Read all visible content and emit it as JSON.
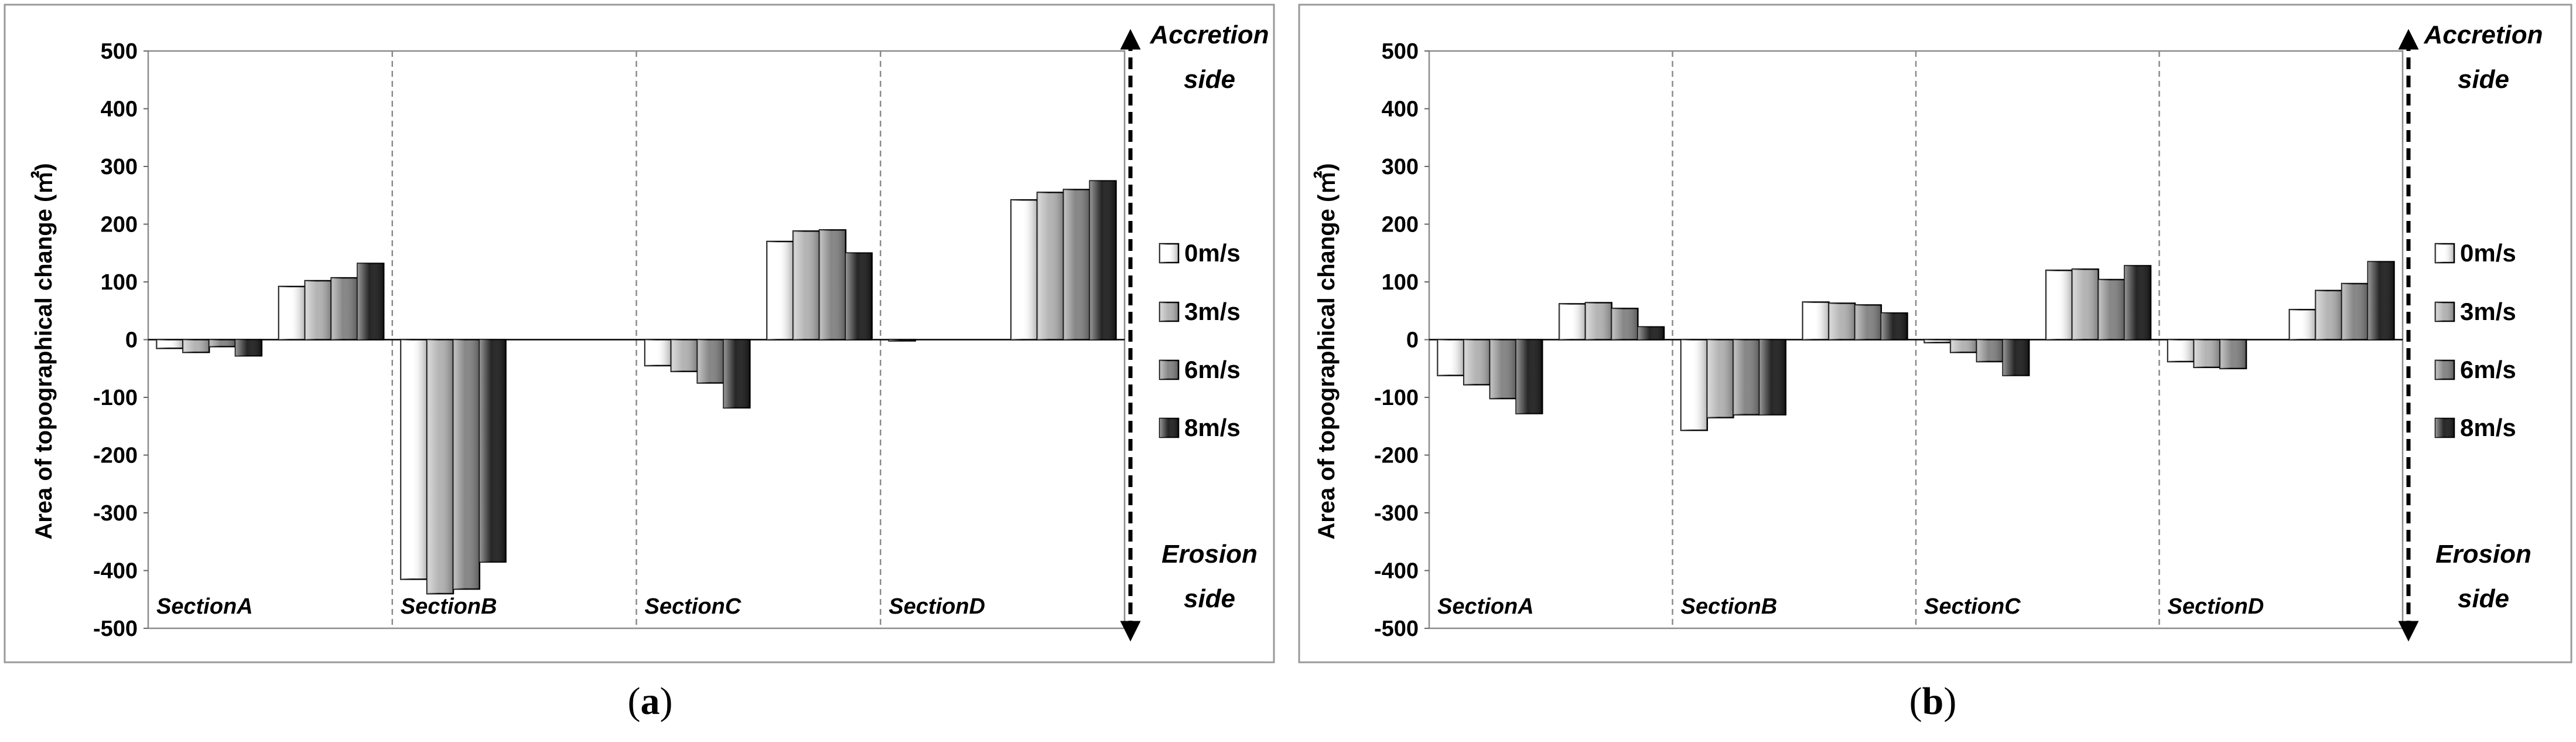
{
  "chart_data": [
    {
      "type": "bar",
      "caption_letter": "a",
      "ylabel": "Area of topographical change (㎡)",
      "ylim": [
        -500,
        500
      ],
      "yticks": [
        "500",
        "400",
        "300",
        "200",
        "100",
        "0",
        "-100",
        "-200",
        "-300",
        "-400",
        "-500"
      ],
      "sections": [
        "SectionA",
        "SectionB",
        "SectionC",
        "SectionD"
      ],
      "groups_per_section": 2,
      "legend": [
        "0m/s",
        "3m/s",
        "6m/s",
        "8m/s"
      ],
      "accretion_label": [
        "Accretion",
        "side"
      ],
      "erosion_label": [
        "Erosion",
        "side"
      ],
      "series": [
        {
          "name": "0m/s",
          "color": "#ffffff",
          "values": [
            -15,
            92,
            -415,
            0,
            -45,
            170,
            -2,
            242
          ]
        },
        {
          "name": "3m/s",
          "color": "#b0b0b0",
          "values": [
            -22,
            102,
            -440,
            0,
            -55,
            188,
            0,
            255
          ]
        },
        {
          "name": "6m/s",
          "color": "#808080",
          "values": [
            -12,
            107,
            -432,
            0,
            -75,
            190,
            0,
            260
          ]
        },
        {
          "name": "8m/s",
          "color": "#1a1a1a",
          "values": [
            -28,
            132,
            -385,
            0,
            -118,
            150,
            0,
            275
          ]
        }
      ]
    },
    {
      "type": "bar",
      "caption_letter": "b",
      "ylabel": "Area of topographical change (㎡)",
      "ylim": [
        -500,
        500
      ],
      "yticks": [
        "500",
        "400",
        "300",
        "200",
        "100",
        "0",
        "-100",
        "-200",
        "-300",
        "-400",
        "-500"
      ],
      "sections": [
        "SectionA",
        "SectionB",
        "SectionC",
        "SectionD"
      ],
      "groups_per_section": 2,
      "legend": [
        "0m/s",
        "3m/s",
        "6m/s",
        "8m/s"
      ],
      "accretion_label": [
        "Accretion",
        "side"
      ],
      "erosion_label": [
        "Erosion",
        "side"
      ],
      "series": [
        {
          "name": "0m/s",
          "color": "#ffffff",
          "values": [
            -62,
            62,
            -157,
            65,
            -5,
            120,
            -38,
            52
          ]
        },
        {
          "name": "3m/s",
          "color": "#b0b0b0",
          "values": [
            -78,
            64,
            -135,
            63,
            -22,
            122,
            -48,
            85
          ]
        },
        {
          "name": "6m/s",
          "color": "#808080",
          "values": [
            -102,
            54,
            -130,
            60,
            -38,
            104,
            -50,
            97
          ]
        },
        {
          "name": "8m/s",
          "color": "#1a1a1a",
          "values": [
            -128,
            22,
            -130,
            46,
            -62,
            128,
            0,
            135
          ]
        }
      ]
    }
  ]
}
